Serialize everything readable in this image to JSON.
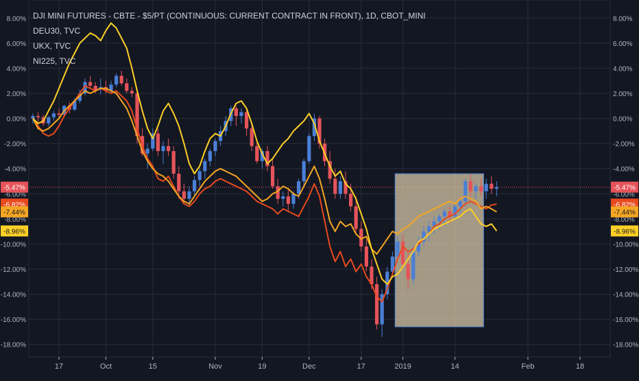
{
  "legend": {
    "title": "DJI MINI FUTURES - CBTE - $5/PT (CONTINUOUS: CURRENT CONTRACT IN FRONT), 1D, CBOT_MINI",
    "line2": "DEU30, TVC",
    "line3": "UKX, TVC",
    "line4": "NI225, TVC"
  },
  "colors": {
    "background": "#131722",
    "grid": "#2a2e39",
    "text": "#b2b5be",
    "candle_up": "#4a7fd6",
    "candle_down": "#e5545a",
    "deu30": "#e84a1f",
    "ukx": "#f5a623",
    "ni225": "#ffd026",
    "rect_fill": "#d6c6a5",
    "rect_stroke": "#4a7fd6"
  },
  "chart_data": {
    "type": "line",
    "ylim": [
      -19,
      9
    ],
    "y_ticks": [
      "8.00%",
      "6.00%",
      "4.00%",
      "2.00%",
      "0.00%",
      "-2.00%",
      "-4.00%",
      "-6.00%",
      "-8.00%",
      "-10.00%",
      "-12.00%",
      "-14.00%",
      "-16.00%",
      "-18.00%"
    ],
    "y_tick_values": [
      8,
      6,
      4,
      2,
      0,
      -2,
      -4,
      -6,
      -8,
      -10,
      -12,
      -14,
      -16,
      -18
    ],
    "x_ticks": [
      "17",
      "Oct",
      "15",
      "Nov",
      "19",
      "Dec",
      "17",
      "2019",
      "14",
      "Feb",
      "18"
    ],
    "x_tick_index": [
      5,
      14,
      23,
      35,
      44,
      53,
      63,
      71,
      81,
      95,
      105
    ],
    "price_labels": [
      {
        "text": "-5.47%",
        "value": -5.47,
        "color": "#e5545a",
        "text_color": "#ffffff"
      },
      {
        "text": "-6.82%",
        "value": -6.82,
        "color": "#e84a1f",
        "text_color": "#ffffff"
      },
      {
        "text": "-7.44%",
        "value": -7.44,
        "color": "#f5a623",
        "text_color": "#131722"
      },
      {
        "text": "-8.96%",
        "value": -8.96,
        "color": "#ffd026",
        "text_color": "#131722"
      }
    ],
    "current_line_value": -5.47,
    "rectangle": {
      "x_start_index": 69.5,
      "x_end_index": 86.5,
      "y_top": -4.4,
      "y_bottom": -16.6
    },
    "candles": [
      [
        0,
        0,
        0.4,
        -0.4,
        0.2
      ],
      [
        1,
        0.2,
        0.5,
        -0.3,
        0.1
      ],
      [
        2,
        0.1,
        0.3,
        -0.6,
        -0.4
      ],
      [
        3,
        -0.4,
        0.2,
        -0.6,
        0.1
      ],
      [
        4,
        0.1,
        0.6,
        -0.2,
        0.4
      ],
      [
        5,
        0.4,
        0.8,
        0,
        0.3
      ],
      [
        6,
        0.3,
        1.1,
        0.1,
        1
      ],
      [
        7,
        1,
        1.3,
        0.4,
        0.7
      ],
      [
        8,
        0.7,
        1.6,
        0.6,
        1.4
      ],
      [
        9,
        1.4,
        2.3,
        1.2,
        2
      ],
      [
        10,
        2,
        3.2,
        1.8,
        2.9
      ],
      [
        11,
        2.9,
        3.4,
        2.4,
        2.6
      ],
      [
        12,
        2.6,
        2.9,
        2,
        2.3
      ],
      [
        13,
        2.3,
        3.2,
        1.9,
        2.5
      ],
      [
        14,
        2.5,
        3,
        2,
        2.2
      ],
      [
        15,
        2.2,
        3,
        2,
        2.7
      ],
      [
        16,
        2.7,
        3.6,
        2.5,
        3.4
      ],
      [
        17,
        3.4,
        3.8,
        2.6,
        2.8
      ],
      [
        18,
        2.8,
        3.2,
        2,
        2.2
      ],
      [
        19,
        2.2,
        2.5,
        1.7,
        2
      ],
      [
        20,
        2,
        2.2,
        -2,
        -1.4
      ],
      [
        21,
        -1.4,
        -0.8,
        -3,
        -2.8
      ],
      [
        22,
        -2.8,
        -2,
        -4,
        -2.4
      ],
      [
        23,
        -2.4,
        -0.8,
        -2.6,
        -1.2
      ],
      [
        24,
        -1.2,
        -0.8,
        -3,
        -2.6
      ],
      [
        25,
        -2.6,
        -1.8,
        -3.6,
        -2.2
      ],
      [
        26,
        -2.2,
        -1.6,
        -3,
        -2.6
      ],
      [
        27,
        -2.6,
        -2.2,
        -4.8,
        -4.4
      ],
      [
        28,
        -4.4,
        -3.8,
        -6.4,
        -5.8
      ],
      [
        29,
        -5.8,
        -5.2,
        -6.8,
        -6.4
      ],
      [
        30,
        -6.4,
        -5.4,
        -7,
        -5.8
      ],
      [
        31,
        -5.8,
        -4.6,
        -6.2,
        -4.9
      ],
      [
        32,
        -4.9,
        -4,
        -5.4,
        -4.2
      ],
      [
        33,
        -4.2,
        -3.2,
        -4.8,
        -3.4
      ],
      [
        34,
        -3.4,
        -2.4,
        -3.8,
        -2.6
      ],
      [
        35,
        -2.6,
        -1.6,
        -3,
        -1.8
      ],
      [
        36,
        -1.8,
        -0.6,
        -2.2,
        -1
      ],
      [
        37,
        -1,
        0.2,
        -1.4,
        -0.2
      ],
      [
        38,
        -0.2,
        1,
        -0.6,
        0.8
      ],
      [
        39,
        0.8,
        1,
        -0.6,
        0.2
      ],
      [
        40,
        0.2,
        0.8,
        -0.4,
        0.5
      ],
      [
        41,
        0.5,
        0.9,
        -1.4,
        -0.8
      ],
      [
        42,
        -0.8,
        -0.4,
        -2.6,
        -2.2
      ],
      [
        43,
        -2.2,
        -1.8,
        -3.6,
        -3.4
      ],
      [
        44,
        -3.4,
        -2.4,
        -4,
        -2.6
      ],
      [
        45,
        -2.6,
        -2.2,
        -4.2,
        -3.8
      ],
      [
        46,
        -3.8,
        -3.2,
        -5.6,
        -5.4
      ],
      [
        47,
        -5.4,
        -4.8,
        -6.8,
        -6.4
      ],
      [
        48,
        -6.4,
        -5.8,
        -7,
        -6.2
      ],
      [
        49,
        -6.2,
        -5.6,
        -7.4,
        -6.8
      ],
      [
        50,
        -6.8,
        -5.8,
        -7.2,
        -6
      ],
      [
        51,
        -6,
        -4.8,
        -6.4,
        -5
      ],
      [
        52,
        -5,
        -3.2,
        -5.4,
        -3.4
      ],
      [
        53,
        -3.4,
        -1.2,
        -3.6,
        -1.4
      ],
      [
        54,
        -1.4,
        0.4,
        -1.8,
        0
      ],
      [
        55,
        0,
        0.2,
        -2.4,
        -2
      ],
      [
        56,
        -2,
        -1.6,
        -3.8,
        -3.4
      ],
      [
        57,
        -3.4,
        -2.6,
        -5.2,
        -4.8
      ],
      [
        58,
        -4.8,
        -4,
        -6.4,
        -6
      ],
      [
        59,
        -6,
        -4.6,
        -6.4,
        -5
      ],
      [
        60,
        -5,
        -4.2,
        -6.4,
        -6
      ],
      [
        61,
        -6,
        -5.2,
        -7.4,
        -7
      ],
      [
        62,
        -7,
        -6.2,
        -9.2,
        -8.8
      ],
      [
        63,
        -8.8,
        -8.2,
        -10.6,
        -10.2
      ],
      [
        64,
        -10.2,
        -9.6,
        -12.2,
        -11.8
      ],
      [
        65,
        -11.8,
        -11.2,
        -13.6,
        -13.2
      ],
      [
        66,
        -13.2,
        -12.6,
        -16.8,
        -16.4
      ],
      [
        67,
        -16.4,
        -13.6,
        -17.4,
        -14
      ],
      [
        68,
        -14,
        -11.8,
        -14.4,
        -12.2
      ],
      [
        69,
        -12.2,
        -10.6,
        -12.6,
        -11
      ],
      [
        70,
        -11,
        -9.4,
        -11.4,
        -9.8
      ],
      [
        71,
        -9.8,
        -9.2,
        -12,
        -11.6
      ],
      [
        72,
        -11.6,
        -10.6,
        -13.6,
        -12.8
      ],
      [
        73,
        -12.8,
        -10.2,
        -13.2,
        -10.6
      ],
      [
        74,
        -10.6,
        -9.4,
        -11,
        -9.8
      ],
      [
        75,
        -9.8,
        -8.6,
        -10.2,
        -9
      ],
      [
        76,
        -9,
        -8.2,
        -9.8,
        -8.6
      ],
      [
        77,
        -8.6,
        -7.8,
        -9.2,
        -8.2
      ],
      [
        78,
        -8.2,
        -7.6,
        -8.8,
        -7.8
      ],
      [
        79,
        -7.8,
        -7.2,
        -8.6,
        -7.4
      ],
      [
        80,
        -7.4,
        -7,
        -8.4,
        -7.8
      ],
      [
        81,
        -7.8,
        -6.8,
        -8,
        -7
      ],
      [
        82,
        -7,
        -6.4,
        -7.6,
        -6.6
      ],
      [
        83,
        -6.6,
        -4.8,
        -7,
        -5
      ],
      [
        84,
        -5,
        -4.4,
        -6.2,
        -5.8
      ],
      [
        85,
        -5.8,
        -5.2,
        -6.4,
        -5.4
      ],
      [
        86,
        -5.4,
        -4.8,
        -6.2,
        -5.8
      ],
      [
        87,
        -5.8,
        -4.8,
        -6.4,
        -5.2
      ],
      [
        88,
        -5.2,
        -4.6,
        -6,
        -5.6
      ],
      [
        89,
        -5.6,
        -5,
        -6.2,
        -5.47
      ]
    ],
    "series": [
      {
        "name": "DEU30, TVC",
        "color": "#e84a1f",
        "values": [
          0,
          -0.6,
          -1.2,
          -1.4,
          -1.2,
          -0.6,
          0.2,
          0.8,
          1.4,
          2,
          2.6,
          2.4,
          2.2,
          2.4,
          2.2,
          2,
          2.2,
          1.8,
          1.4,
          0.6,
          -0.8,
          -2.2,
          -3.2,
          -3.8,
          -4.8,
          -5,
          -4.6,
          -5.4,
          -6.2,
          -6.8,
          -7,
          -6.6,
          -6,
          -5.6,
          -5.4,
          -5,
          -4.8,
          -5,
          -5.2,
          -5.4,
          -5.6,
          -5.8,
          -6.2,
          -6.6,
          -6.8,
          -7,
          -7.2,
          -7.6,
          -7.2,
          -7.4,
          -7.6,
          -7.8,
          -7,
          -6.2,
          -5.2,
          -6.2,
          -8.2,
          -10.2,
          -11.4,
          -10.6,
          -11.8,
          -11.2,
          -12.2,
          -11.6,
          -12.6,
          -13.2,
          -14.2,
          -14.6,
          -13.6,
          -12.4,
          -11.2,
          -10.2,
          -10.6,
          -10.4,
          -10,
          -9.6,
          -9.2,
          -8.6,
          -8.4,
          -8,
          -7.8,
          -7.6,
          -7.2,
          -6.8,
          -6.6,
          -6.8,
          -7,
          -7.2,
          -6.9,
          -6.82
        ]
      },
      {
        "name": "UKX, TVC",
        "color": "#f5a623",
        "values": [
          0,
          -0.8,
          -1,
          -0.8,
          -0.4,
          0,
          0.6,
          1,
          1.4,
          1.8,
          2.2,
          2,
          2.2,
          2.4,
          2.4,
          2.2,
          2,
          1.4,
          0.8,
          -0.2,
          -1.4,
          -2.6,
          -3.4,
          -4,
          -4.4,
          -4.6,
          -5,
          -5.6,
          -6.2,
          -6.6,
          -6.8,
          -6.2,
          -5.6,
          -5,
          -4.6,
          -4.2,
          -4,
          -4.2,
          -4.4,
          -4.6,
          -5,
          -5.4,
          -5.8,
          -6.2,
          -6.6,
          -6.4,
          -6,
          -5.8,
          -5.4,
          -5.6,
          -6,
          -6.2,
          -5.4,
          -4.6,
          -3.8,
          -4.8,
          -6.4,
          -8.2,
          -9,
          -8.2,
          -8.6,
          -8.4,
          -9.2,
          -9.6,
          -9.4,
          -10.4,
          -10.8,
          -10.2,
          -9.6,
          -9,
          -9.2,
          -8.8,
          -8.6,
          -8.2,
          -7.8,
          -7.6,
          -7.4,
          -7.2,
          -7,
          -6.8,
          -6.6,
          -6.8,
          -6.4,
          -6.2,
          -6.4,
          -6.6,
          -7.2,
          -7,
          -7.2,
          -7.44
        ]
      },
      {
        "name": "NI225, TVC",
        "color": "#ffd026",
        "values": [
          0,
          -0.4,
          -0.2,
          0.6,
          1.4,
          2.4,
          3.4,
          4.4,
          5.2,
          6,
          6.4,
          6.8,
          6.6,
          6.2,
          7,
          7.6,
          7.2,
          6.4,
          5.6,
          4,
          2.2,
          0.6,
          -0.8,
          -1.6,
          -0.6,
          0.6,
          1.2,
          0.4,
          -0.6,
          -2,
          -3.6,
          -4.4,
          -3.8,
          -2.6,
          -1.6,
          -1.2,
          -1.4,
          -0.6,
          0.4,
          1.2,
          1.4,
          0.8,
          -0.4,
          -1.8,
          -2.8,
          -3.6,
          -3.2,
          -2.6,
          -2,
          -1.6,
          -1,
          -0.6,
          -0.2,
          0.4,
          -0.4,
          -1.8,
          -2.8,
          -3.8,
          -4.6,
          -4.2,
          -5.2,
          -5.6,
          -6.4,
          -7.6,
          -8.8,
          -10.4,
          -11.6,
          -12.8,
          -13.2,
          -12.6,
          -12.4,
          -11.8,
          -11.2,
          -10.6,
          -9.8,
          -9.6,
          -9.2,
          -8.8,
          -8.6,
          -8.4,
          -8.2,
          -8,
          -7.8,
          -7.4,
          -7.2,
          -7.8,
          -8.4,
          -8.6,
          -8.4,
          -8.96
        ]
      }
    ]
  }
}
